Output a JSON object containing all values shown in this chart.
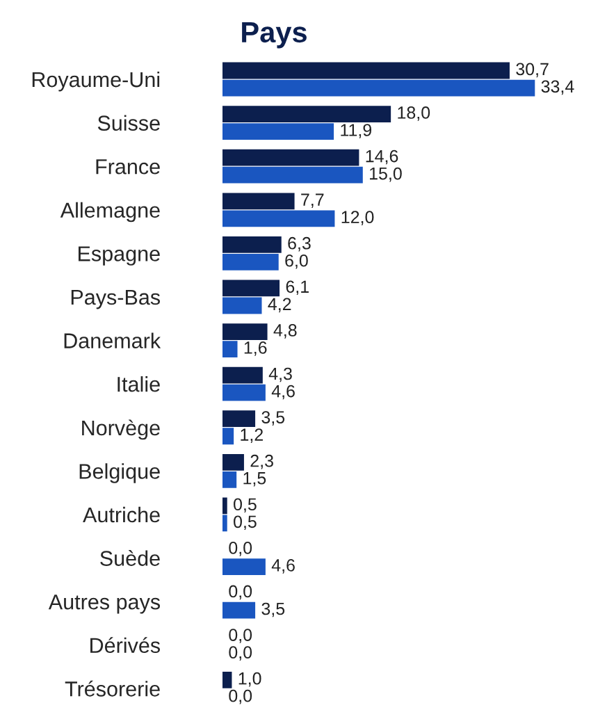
{
  "chart_data": {
    "type": "bar",
    "orientation": "horizontal",
    "title": "Pays",
    "categories": [
      "Royaume-Uni",
      "Suisse",
      "France",
      "Allemagne",
      "Espagne",
      "Pays-Bas",
      "Danemark",
      "Italie",
      "Norvège",
      "Belgique",
      "Autriche",
      "Suède",
      "Autres pays",
      "Dérivés",
      "Trésorerie"
    ],
    "series": [
      {
        "color": "#0c1f4e",
        "values": [
          30.7,
          18.0,
          14.6,
          7.7,
          6.3,
          6.1,
          4.8,
          4.3,
          3.5,
          2.3,
          0.5,
          0.0,
          0.0,
          0.0,
          1.0
        ],
        "value_labels": [
          "30,7",
          "18,0",
          "14,6",
          "7,7",
          "6,3",
          "6,1",
          "4,8",
          "4,3",
          "3,5",
          "2,3",
          "0,5",
          "0,0",
          "0,0",
          "0,0",
          "1,0"
        ]
      },
      {
        "color": "#1a56c0",
        "values": [
          33.4,
          11.9,
          15.0,
          12.0,
          6.0,
          4.2,
          1.6,
          4.6,
          1.2,
          1.5,
          0.5,
          4.6,
          3.5,
          0.0,
          0.0
        ],
        "value_labels": [
          "33,4",
          "11,9",
          "15,0",
          "12,0",
          "6,0",
          "4,2",
          "1,6",
          "4,6",
          "1,2",
          "1,5",
          "0,5",
          "4,6",
          "3,5",
          "0,0",
          "0,0"
        ]
      }
    ]
  }
}
